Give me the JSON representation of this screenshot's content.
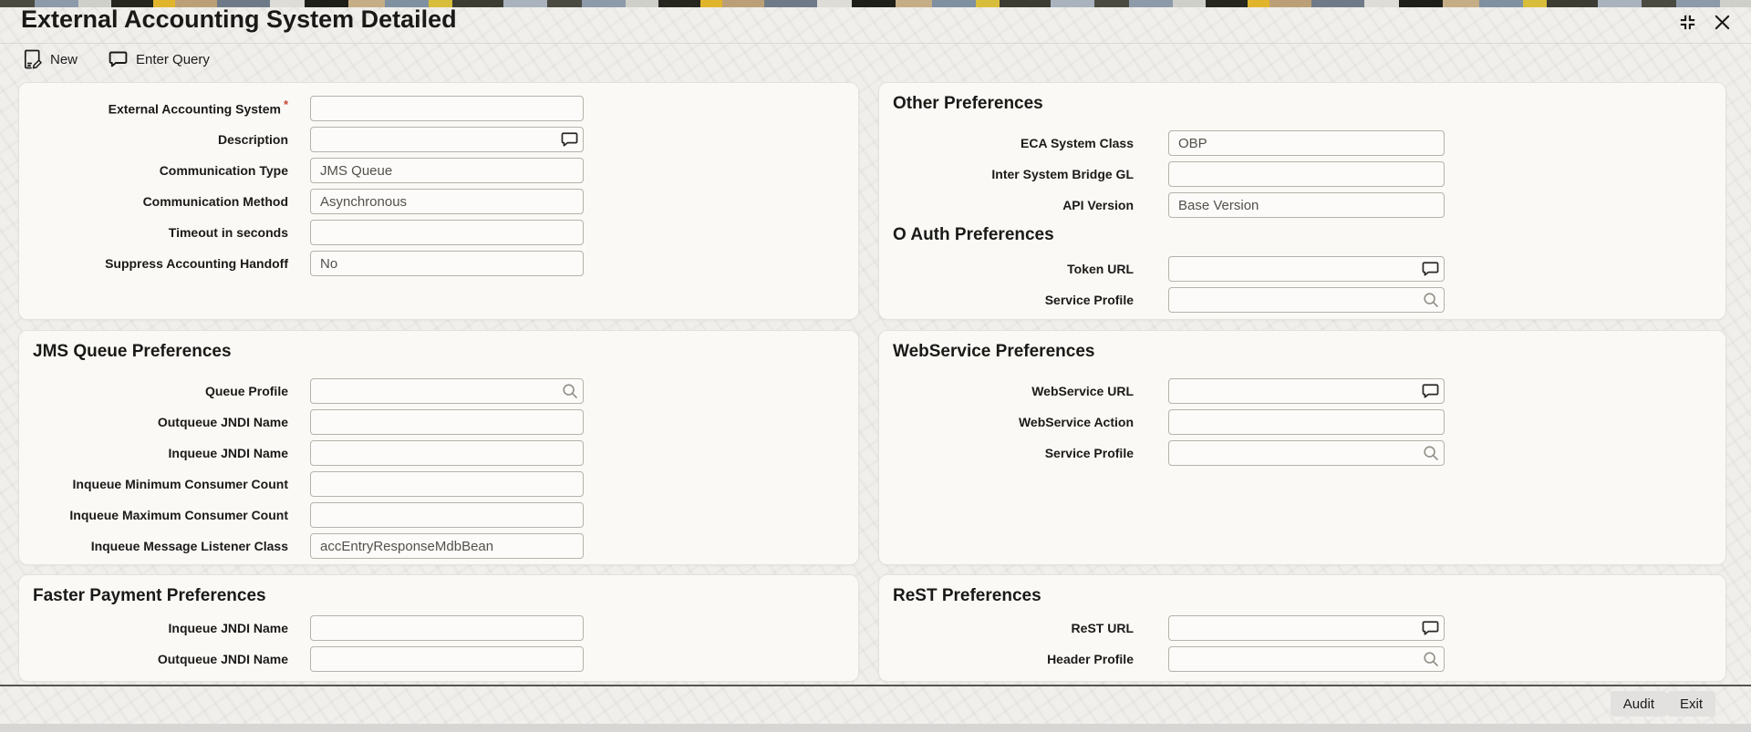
{
  "window": {
    "title": "External Accounting System Detailed",
    "controls": [
      {
        "icon": "resize-icon"
      },
      {
        "icon": "close-icon"
      }
    ]
  },
  "toolbar": {
    "new_label": "New",
    "new_icon": "new-document-icon",
    "enter_query_label": "Enter Query",
    "enter_query_icon": "comment-icon"
  },
  "required_marker": "*",
  "colors": {
    "required_marker": "#c74634",
    "panel_background": "#faf9f6",
    "field_border": "#b6b2ab",
    "heading_text": "#191917",
    "value_text": "#54504b"
  },
  "main_form": {
    "fields": [
      {
        "label": "External Accounting System",
        "required": true,
        "value": "",
        "icon": null
      },
      {
        "label": "Description",
        "value": "",
        "icon": "comment"
      },
      {
        "label": "Communication Type",
        "value": "JMS Queue",
        "icon": null
      },
      {
        "label": "Communication Method",
        "value": "Asynchronous",
        "icon": null
      },
      {
        "label": "Timeout in seconds",
        "value": "",
        "icon": null
      },
      {
        "label": "Suppress Accounting Handoff",
        "value": "No",
        "icon": null
      }
    ]
  },
  "other_preferences": {
    "heading": "Other Preferences",
    "fields": [
      {
        "label": "ECA System Class",
        "value": "OBP",
        "icon": null
      },
      {
        "label": "Inter System Bridge GL",
        "value": "",
        "icon": null
      },
      {
        "label": "API Version",
        "value": "Base Version",
        "icon": null
      }
    ]
  },
  "oauth_preferences": {
    "heading": "O Auth Preferences",
    "fields": [
      {
        "label": "Token URL",
        "value": "",
        "icon": "comment"
      },
      {
        "label": "Service Profile",
        "value": "",
        "icon": "search"
      }
    ]
  },
  "jms_queue_preferences": {
    "heading": "JMS Queue Preferences",
    "fields": [
      {
        "label": "Queue Profile",
        "value": "",
        "icon": "search"
      },
      {
        "label": "Outqueue JNDI Name",
        "value": "",
        "icon": null
      },
      {
        "label": "Inqueue JNDI Name",
        "value": "",
        "icon": null
      },
      {
        "label": "Inqueue Minimum Consumer Count",
        "value": "",
        "icon": null
      },
      {
        "label": "Inqueue Maximum Consumer Count",
        "value": "",
        "icon": null
      },
      {
        "label": "Inqueue Message Listener Class",
        "value": "accEntryResponseMdbBean",
        "icon": null
      }
    ]
  },
  "webservice_preferences": {
    "heading": "WebService Preferences",
    "fields": [
      {
        "label": "WebService URL",
        "value": "",
        "icon": "comment"
      },
      {
        "label": "WebService Action",
        "value": "",
        "icon": null
      },
      {
        "label": "Service Profile",
        "value": "",
        "icon": "search"
      }
    ]
  },
  "faster_payment_preferences": {
    "heading": "Faster Payment Preferences",
    "fields": [
      {
        "label": "Inqueue JNDI Name",
        "value": "",
        "icon": null
      },
      {
        "label": "Outqueue JNDI Name",
        "value": "",
        "icon": null
      }
    ]
  },
  "rest_preferences": {
    "heading": "ReST Preferences",
    "fields": [
      {
        "label": "ReST URL",
        "value": "",
        "icon": "comment"
      },
      {
        "label": "Header Profile",
        "value": "",
        "icon": "search"
      }
    ]
  },
  "footer": {
    "audit_label": "Audit",
    "exit_label": "Exit"
  }
}
